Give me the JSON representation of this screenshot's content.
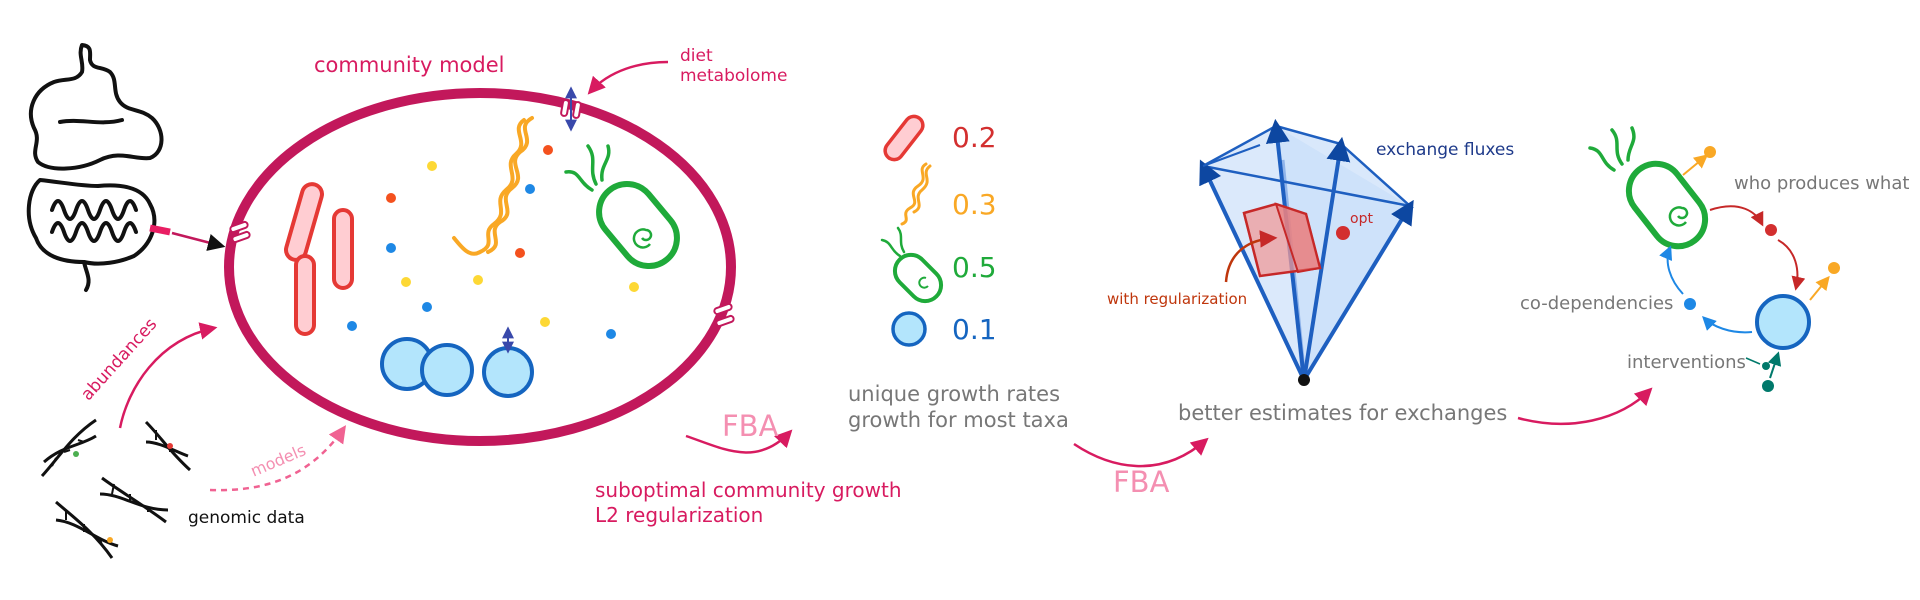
{
  "colors": {
    "magenta": "#c2185b",
    "pink_text": "#d81b60",
    "fba_pink": "#f48fb1",
    "red": "#e53935",
    "orange": "#f9a825",
    "green": "#1faa3a",
    "blue": "#1565c0",
    "light_blue": "#b3e5fc",
    "navy": "#1e3a8a",
    "grey_text": "#777777"
  },
  "labels": {
    "community_model": "community model",
    "diet_metabolome": "diet\nmetabolome",
    "abundances": "abundances",
    "models": "models",
    "genomic_data": "genomic data",
    "fba_1": "FBA",
    "fba_2": "FBA",
    "suboptimal": "suboptimal community growth\nL2 regularization",
    "unique_growth": "unique growth rates\ngrowth for most taxa",
    "exchange_fluxes": "exchange fluxes",
    "opt": "opt",
    "with_regularization": "with regularization",
    "better_estimates": "better estimates for exchanges",
    "who_produces": "who produces what",
    "co_dependencies": "co-dependencies",
    "interventions": "interventions"
  },
  "growth_legend": [
    {
      "taxon_icon": "rod-bacterium-icon",
      "value": "0.2",
      "color": "#d32f2f"
    },
    {
      "taxon_icon": "spirochete-icon",
      "value": "0.3",
      "color": "#f9a825"
    },
    {
      "taxon_icon": "flagellated-bacterium-icon",
      "value": "0.5",
      "color": "#1faa3a"
    },
    {
      "taxon_icon": "coccus-icon",
      "value": "0.1",
      "color": "#1565c0"
    }
  ]
}
